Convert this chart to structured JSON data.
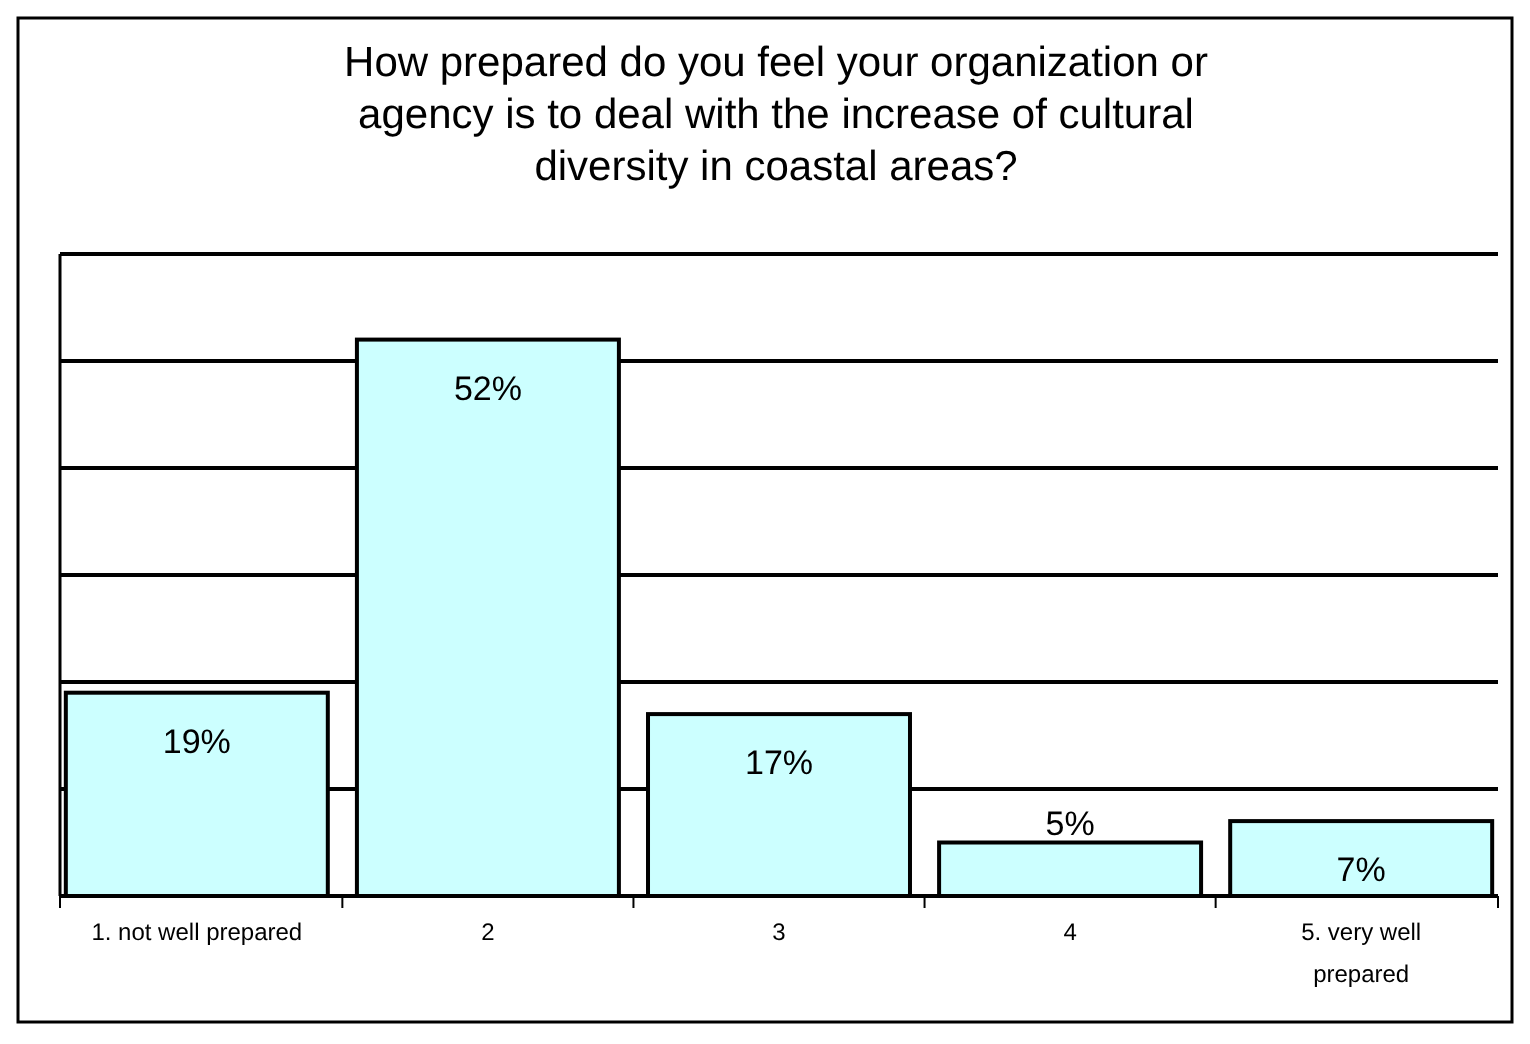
{
  "chart_data": {
    "type": "bar",
    "title": "How prepared do you feel your organization or agency is to deal with the increase of cultural diversity in coastal areas?",
    "categories": [
      "1. not well prepared",
      "2",
      "3",
      "4",
      "5. very well prepared"
    ],
    "values": [
      19,
      52,
      17,
      5,
      7
    ],
    "color": "#ccffff",
    "data_labels": true,
    "value_labels": [
      "19%",
      "52%",
      "17%",
      "5%",
      "7%"
    ],
    "ylim": [
      0,
      60
    ],
    "yticks": [
      {
        "value": 0,
        "label": null
      },
      {
        "value": 10,
        "label": null
      },
      {
        "value": 20,
        "label": null
      },
      {
        "value": 30,
        "label": null
      },
      {
        "value": 40,
        "label": null
      },
      {
        "value": 50,
        "label": null
      },
      {
        "value": 60,
        "label": null
      }
    ],
    "grid": "y",
    "tick_labels": "x"
  }
}
